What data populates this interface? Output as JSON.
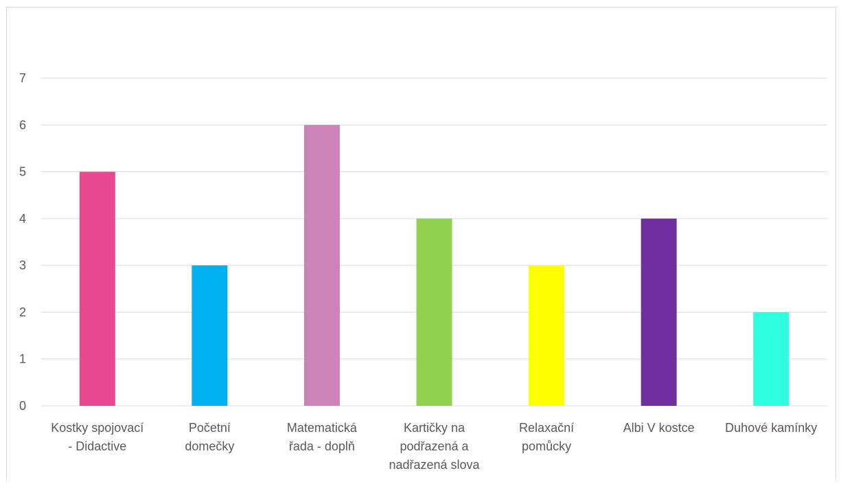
{
  "chart_data": {
    "type": "bar",
    "title": "",
    "xlabel": "",
    "ylabel": "",
    "ylim": [
      0,
      7
    ],
    "yticks": [
      0,
      1,
      2,
      3,
      4,
      5,
      6,
      7
    ],
    "grid": true,
    "legend": "none",
    "categories": [
      [
        "Kostky spojovací",
        "- Didactive"
      ],
      [
        "Početní",
        "domečky"
      ],
      [
        "Matematická",
        "řada - doplň"
      ],
      [
        "Kartičky na",
        "podřazená a",
        "nadřazená slova"
      ],
      [
        "Relaxační",
        "pomůcky"
      ],
      [
        "Albi V kostce"
      ],
      [
        "Duhové kamínky"
      ]
    ],
    "values": [
      5,
      3,
      6,
      4,
      3,
      4,
      2
    ],
    "colors": [
      "#e8488f",
      "#00b0f0",
      "#cc84b8",
      "#92d050",
      "#ffff00",
      "#7030a0",
      "#2effdf"
    ]
  }
}
